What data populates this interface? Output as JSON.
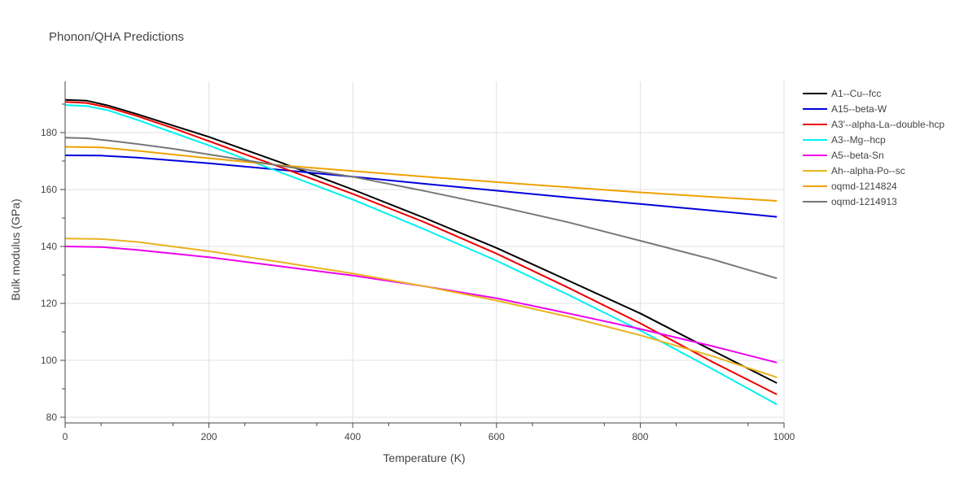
{
  "chart_data": {
    "type": "line",
    "title": "Phonon/QHA Predictions",
    "xlabel": "Temperature (K)",
    "ylabel": "Bulk modulus (GPa)",
    "xlim": [
      0,
      1000
    ],
    "ylim": [
      78,
      198
    ],
    "xticks": [
      0,
      200,
      400,
      600,
      800,
      1000
    ],
    "yticks": [
      80,
      100,
      120,
      140,
      160,
      180
    ],
    "grid": true,
    "legend_position": "right",
    "series": [
      {
        "name": "A1--Cu--fcc",
        "color": "#000000",
        "x": [
          0,
          30,
          60,
          100,
          150,
          200,
          300,
          400,
          500,
          600,
          700,
          800,
          900,
          990
        ],
        "y": [
          191.5,
          191.2,
          189.5,
          186.5,
          182.5,
          178.5,
          169.5,
          160,
          150,
          139.5,
          128,
          116.5,
          103.5,
          92
        ]
      },
      {
        "name": "A15--beta-W",
        "color": "#0000dd",
        "x": [
          0,
          50,
          100,
          200,
          300,
          400,
          500,
          600,
          700,
          800,
          900,
          990
        ],
        "y": [
          172,
          171.9,
          171.2,
          169.2,
          166.9,
          164.5,
          162,
          159.6,
          157.2,
          154.9,
          152.6,
          150.4
        ]
      },
      {
        "name": "A3'--alpha-La--double-hcp",
        "color": "#ee0000",
        "x": [
          0,
          30,
          60,
          100,
          150,
          200,
          300,
          400,
          500,
          600,
          700,
          800,
          900,
          990
        ],
        "y": [
          190.8,
          190.4,
          188.8,
          185.8,
          181.6,
          177,
          167.8,
          158.5,
          148.5,
          137.5,
          125.5,
          113,
          99.5,
          88
        ]
      },
      {
        "name": "A3--Mg--hcp",
        "color": "#00f0f0",
        "x": [
          0,
          30,
          60,
          100,
          150,
          200,
          300,
          400,
          500,
          600,
          700,
          800,
          900,
          990
        ],
        "y": [
          189.7,
          189.3,
          187.8,
          184.5,
          180,
          175.5,
          166,
          156.5,
          146,
          135,
          123,
          110.5,
          97,
          84.5
        ]
      },
      {
        "name": "A5--beta-Sn",
        "color": "#ee00ee",
        "x": [
          0,
          50,
          100,
          200,
          300,
          400,
          500,
          600,
          700,
          800,
          900,
          990
        ],
        "y": [
          140,
          139.8,
          138.8,
          136.2,
          133,
          129.8,
          126,
          121.8,
          116.5,
          111,
          105,
          99.2
        ]
      },
      {
        "name": "Ah--alpha-Po--sc",
        "color": "#e8b420",
        "x": [
          0,
          50,
          100,
          200,
          300,
          400,
          500,
          600,
          700,
          800,
          900,
          990
        ],
        "y": [
          142.8,
          142.6,
          141.6,
          138.3,
          134.5,
          130.5,
          126,
          121,
          115.3,
          108.8,
          101.5,
          94
        ]
      },
      {
        "name": "oqmd-1214824",
        "color": "#f0a000",
        "x": [
          0,
          50,
          100,
          200,
          300,
          400,
          500,
          600,
          700,
          800,
          900,
          990
        ],
        "y": [
          175,
          174.8,
          173.6,
          171,
          168.5,
          166.5,
          164.5,
          162.6,
          160.8,
          159,
          157.4,
          156
        ]
      },
      {
        "name": "oqmd-1214913",
        "color": "#777777",
        "x": [
          0,
          30,
          60,
          100,
          150,
          200,
          300,
          400,
          500,
          600,
          700,
          800,
          900,
          990
        ],
        "y": [
          178.2,
          178,
          177.2,
          176,
          174.3,
          172.3,
          168.3,
          164.5,
          159.5,
          154.2,
          148.5,
          142,
          135.5,
          128.8
        ]
      }
    ]
  }
}
